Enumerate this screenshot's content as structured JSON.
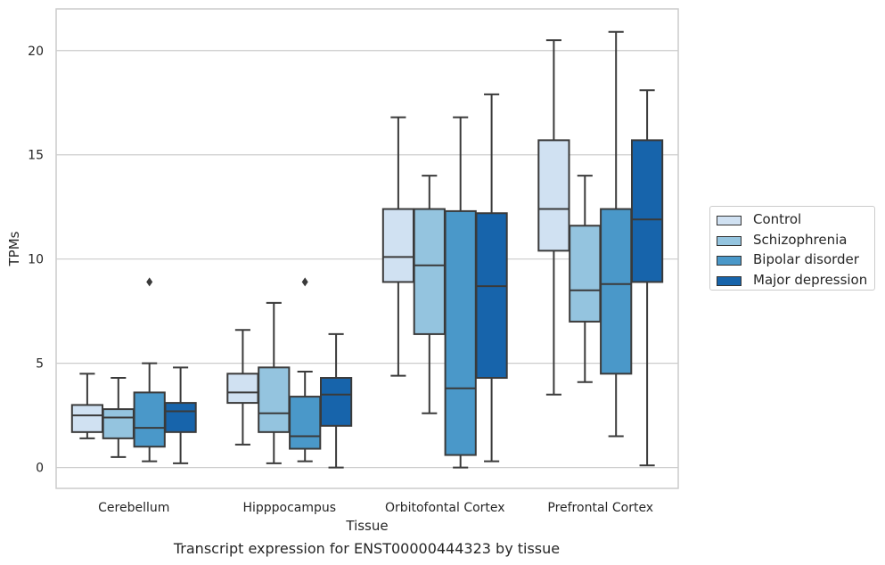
{
  "chart_data": {
    "type": "box",
    "title": "Transcript expression for ENST00000444323 by tissue",
    "xlabel": "Tissue",
    "ylabel": "TPMs",
    "ylim": [
      -1,
      22
    ],
    "yticks": [
      0,
      5,
      10,
      15,
      20
    ],
    "grid": "horizontal",
    "legend_position": "right",
    "categories": [
      "Cerebellum",
      "Hipppocampus",
      "Orbitofontal Cortex",
      "Prefrontal Cortex"
    ],
    "series": [
      {
        "name": "Control",
        "color": "#d0e1f2",
        "boxes": [
          {
            "whisker_low": 1.4,
            "q1": 1.7,
            "median": 2.5,
            "q3": 3.0,
            "whisker_high": 4.5,
            "outliers": []
          },
          {
            "whisker_low": 1.1,
            "q1": 3.1,
            "median": 3.6,
            "q3": 4.5,
            "whisker_high": 6.6,
            "outliers": []
          },
          {
            "whisker_low": 4.4,
            "q1": 8.9,
            "median": 10.1,
            "q3": 12.4,
            "whisker_high": 16.8,
            "outliers": []
          },
          {
            "whisker_low": 3.5,
            "q1": 10.4,
            "median": 12.4,
            "q3": 15.7,
            "whisker_high": 20.5,
            "outliers": []
          }
        ]
      },
      {
        "name": "Schizophrenia",
        "color": "#94c4df",
        "boxes": [
          {
            "whisker_low": 0.5,
            "q1": 1.4,
            "median": 2.4,
            "q3": 2.8,
            "whisker_high": 4.3,
            "outliers": []
          },
          {
            "whisker_low": 0.2,
            "q1": 1.7,
            "median": 2.6,
            "q3": 4.8,
            "whisker_high": 7.9,
            "outliers": []
          },
          {
            "whisker_low": 2.6,
            "q1": 6.4,
            "median": 9.7,
            "q3": 12.4,
            "whisker_high": 14.0,
            "outliers": []
          },
          {
            "whisker_low": 4.1,
            "q1": 7.0,
            "median": 8.5,
            "q3": 11.6,
            "whisker_high": 14.0,
            "outliers": []
          }
        ]
      },
      {
        "name": "Bipolar disorder",
        "color": "#4a98c9",
        "boxes": [
          {
            "whisker_low": 0.3,
            "q1": 1.0,
            "median": 1.9,
            "q3": 3.6,
            "whisker_high": 5.0,
            "outliers": [
              8.9
            ]
          },
          {
            "whisker_low": 0.3,
            "q1": 0.9,
            "median": 1.5,
            "q3": 3.4,
            "whisker_high": 4.6,
            "outliers": [
              8.9
            ]
          },
          {
            "whisker_low": 0.0,
            "q1": 0.6,
            "median": 3.8,
            "q3": 12.3,
            "whisker_high": 16.8,
            "outliers": []
          },
          {
            "whisker_low": 1.5,
            "q1": 4.5,
            "median": 8.8,
            "q3": 12.4,
            "whisker_high": 20.9,
            "outliers": []
          }
        ]
      },
      {
        "name": "Major depression",
        "color": "#1764ab",
        "boxes": [
          {
            "whisker_low": 0.2,
            "q1": 1.7,
            "median": 2.7,
            "q3": 3.1,
            "whisker_high": 4.8,
            "outliers": []
          },
          {
            "whisker_low": 0.0,
            "q1": 2.0,
            "median": 3.5,
            "q3": 4.3,
            "whisker_high": 6.4,
            "outliers": []
          },
          {
            "whisker_low": 0.3,
            "q1": 4.3,
            "median": 8.7,
            "q3": 12.2,
            "whisker_high": 17.9,
            "outliers": []
          },
          {
            "whisker_low": 0.1,
            "q1": 8.9,
            "median": 11.9,
            "q3": 15.7,
            "whisker_high": 18.1,
            "outliers": []
          }
        ]
      }
    ]
  }
}
